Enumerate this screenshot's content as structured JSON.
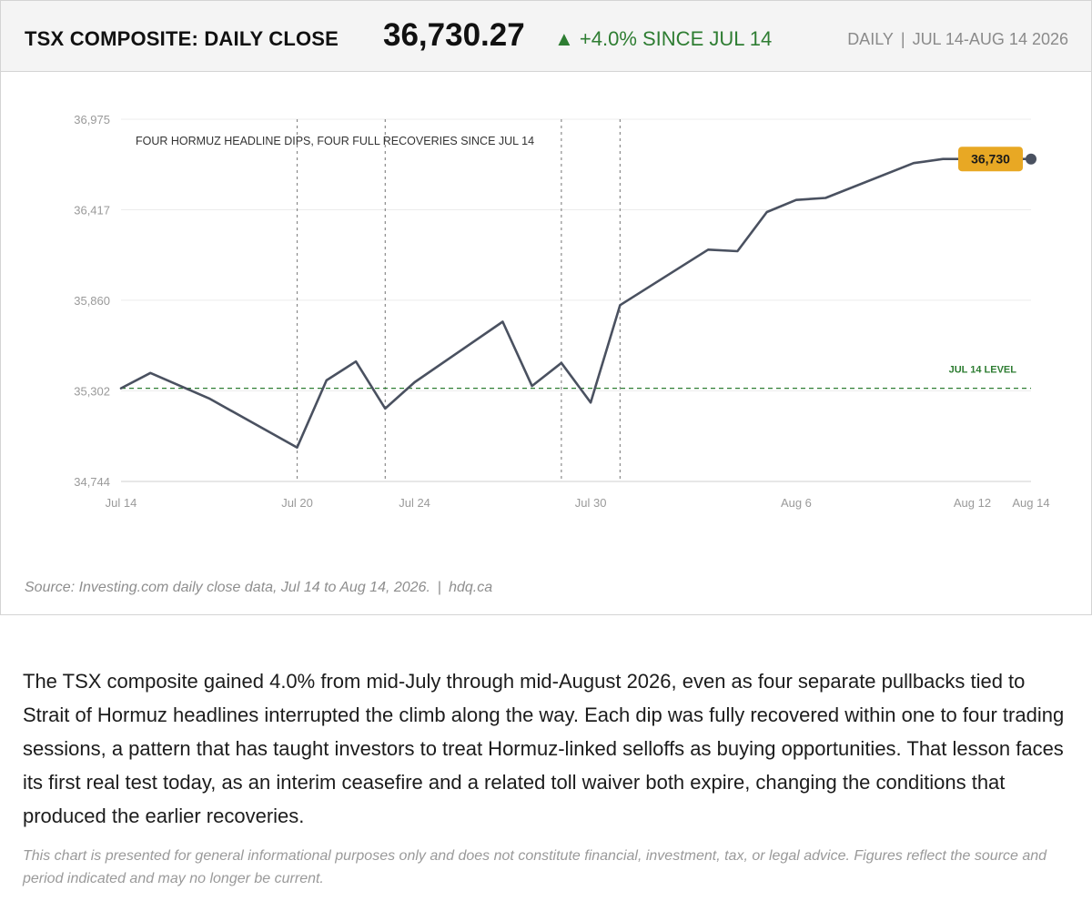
{
  "header": {
    "title": "TSX COMPOSITE: DAILY CLOSE",
    "value": "36,730.27",
    "change_arrow": "▲",
    "change_text": "+4.0% SINCE JUL 14",
    "frequency": "DAILY",
    "separator": "|",
    "period": "JUL 14-AUG 14 2026"
  },
  "source": {
    "text": "Source: Investing.com daily close data, Jul 14 to Aug 14, 2026.",
    "separator": "|",
    "site": "hdq.ca"
  },
  "description": "The TSX composite gained 4.0% from mid-July through mid-August 2026, even as four separate pullbacks tied to Strait of Hormuz headlines interrupted the climb along the way. Each dip was fully recovered within one to four trading sessions, a pattern that has taught investors to treat Hormuz-linked selloffs as buying opportunities. That lesson faces its first real test today, as an interim ceasefire and a related toll waiver both expire, changing the conditions that produced the earlier recoveries.",
  "disclaimer": "This chart is presented for general informational purposes only and does not constitute financial, investment, tax, or legal advice. Figures reflect the source and period indicated and may no longer be current.",
  "colors": {
    "line": "#4a5160",
    "reference": "#2e7d32",
    "callout": "#e8a824",
    "change": "#2e7d32",
    "grid": "#ececec",
    "event_line": "#8a8a8a"
  },
  "chart_data": {
    "type": "line",
    "title": "TSX COMPOSITE: DAILY CLOSE",
    "xlabel": "",
    "ylabel": "",
    "x": [
      "2026-07-14",
      "2026-07-15",
      "2026-07-17",
      "2026-07-20",
      "2026-07-21",
      "2026-07-22",
      "2026-07-23",
      "2026-07-24",
      "2026-07-27",
      "2026-07-28",
      "2026-07-29",
      "2026-07-30",
      "2026-07-31",
      "2026-08-03",
      "2026-08-04",
      "2026-08-05",
      "2026-08-06",
      "2026-08-07",
      "2026-08-10",
      "2026-08-11",
      "2026-08-12",
      "2026-08-13",
      "2026-08-14"
    ],
    "series": [
      {
        "values": [
          35318,
          35412,
          35255,
          34953,
          35367,
          35483,
          35193,
          35355,
          35728,
          35332,
          35474,
          35230,
          35830,
          36172,
          36162,
          36403,
          36478,
          36490,
          36705,
          36730,
          36730,
          36730,
          36730
        ]
      }
    ],
    "dates_shown": [
      "2026-07-14",
      "2026-07-15",
      "2026-07-17",
      "2026-07-20",
      "2026-07-21",
      "2026-07-22",
      "2026-07-23",
      "2026-07-24",
      "2026-07-27",
      "2026-07-28",
      "2026-07-29",
      "2026-07-30",
      "2026-07-31",
      "2026-08-03",
      "2026-08-04",
      "2026-08-05",
      "2026-08-06",
      "2026-08-07",
      "2026-08-10",
      "2026-08-11",
      "2026-08-12",
      "2026-08-13",
      "2026-08-14"
    ],
    "y_ticks": [
      34744,
      35302,
      35860,
      36417,
      36975
    ],
    "y_tick_labels": [
      "34,744",
      "35,302",
      "35,860",
      "36,417",
      "36,975"
    ],
    "ylim": [
      34744,
      36975
    ],
    "x_ticks": [
      {
        "date": "2026-07-14",
        "label": "Jul 14"
      },
      {
        "date": "2026-07-20",
        "label": "Jul 20"
      },
      {
        "date": "2026-07-24",
        "label": "Jul 24"
      },
      {
        "date": "2026-07-30",
        "label": "Jul 30"
      },
      {
        "date": "2026-08-06",
        "label": "Aug 6"
      },
      {
        "date": "2026-08-12",
        "label": "Aug 12"
      },
      {
        "date": "2026-08-14",
        "label": "Aug 14"
      }
    ],
    "reference_line": {
      "value": 35318,
      "label": "JUL 14 LEVEL"
    },
    "event_markers": [
      "2026-07-20",
      "2026-07-23",
      "2026-07-29",
      "2026-07-31"
    ],
    "annotation": "FOUR HORMUZ HEADLINE DIPS, FOUR FULL RECOVERIES SINCE JUL 14",
    "end_label": "36,730",
    "grid": true,
    "legend": "none"
  }
}
